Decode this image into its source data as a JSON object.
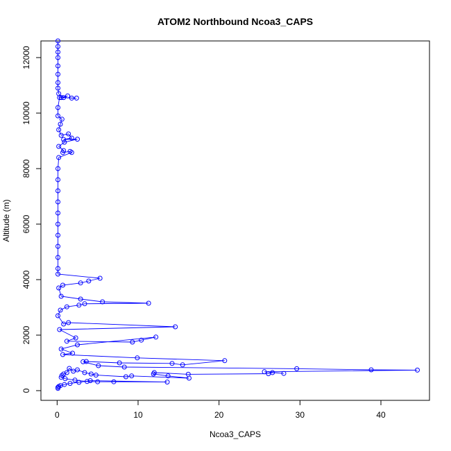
{
  "chart_data": {
    "type": "line",
    "title": "ATOM2 Northbound Ncoa3_CAPS",
    "xlabel": "Ncoa3_CAPS",
    "ylabel": "Altitude (m)",
    "xlim": [
      -2,
      46
    ],
    "ylim": [
      -350,
      12600
    ],
    "xticks": [
      0,
      10,
      20,
      30,
      40
    ],
    "xtick_labels": [
      "0",
      "10",
      "20",
      "30",
      "40"
    ],
    "yticks": [
      0,
      2000,
      4000,
      6000,
      8000,
      10000,
      12000
    ],
    "ytick_labels": [
      "0",
      "2000",
      "4000",
      "6000",
      "8000",
      "10000",
      "12000"
    ],
    "grid": false,
    "series_color": "#0000ff",
    "series": [
      {
        "marker": "open-circle",
        "points": [
          [
            0.1,
            12600
          ],
          [
            0.1,
            12400
          ],
          [
            0.1,
            12200
          ],
          [
            0.1,
            12000
          ],
          [
            0.1,
            11700
          ],
          [
            0.1,
            11400
          ],
          [
            0.1,
            11100
          ],
          [
            0.1,
            10900
          ],
          [
            0.2,
            10700
          ],
          [
            0.5,
            10560
          ],
          [
            1.3,
            10620
          ],
          [
            0.8,
            10560
          ],
          [
            1.8,
            10540
          ],
          [
            2.4,
            10540
          ],
          [
            0.3,
            10560
          ],
          [
            0.1,
            10200
          ],
          [
            0.1,
            9900
          ],
          [
            0.6,
            9780
          ],
          [
            0.4,
            9600
          ],
          [
            0.2,
            9400
          ],
          [
            0.5,
            9200
          ],
          [
            1.4,
            9250
          ],
          [
            1.8,
            9100
          ],
          [
            0.8,
            9050
          ],
          [
            2.5,
            9060
          ],
          [
            0.9,
            8950
          ],
          [
            0.2,
            8800
          ],
          [
            0.8,
            8650
          ],
          [
            0.7,
            8580
          ],
          [
            1.6,
            8620
          ],
          [
            1.8,
            8580
          ],
          [
            0.2,
            8400
          ],
          [
            0.1,
            8000
          ],
          [
            0.1,
            7600
          ],
          [
            0.1,
            7200
          ],
          [
            0.1,
            6800
          ],
          [
            0.1,
            6400
          ],
          [
            0.1,
            6000
          ],
          [
            0.1,
            5600
          ],
          [
            0.1,
            5200
          ],
          [
            0.1,
            4800
          ],
          [
            0.1,
            4400
          ],
          [
            0.1,
            4200
          ],
          [
            5.3,
            4050
          ],
          [
            3.9,
            3950
          ],
          [
            2.9,
            3880
          ],
          [
            0.7,
            3800
          ],
          [
            0.2,
            3700
          ],
          [
            0.5,
            3400
          ],
          [
            2.9,
            3300
          ],
          [
            5.6,
            3200
          ],
          [
            11.3,
            3150
          ],
          [
            3.4,
            3130
          ],
          [
            2.7,
            3080
          ],
          [
            1.2,
            3020
          ],
          [
            0.4,
            2900
          ],
          [
            0.1,
            2700
          ],
          [
            0.8,
            2400
          ],
          [
            1.4,
            2450
          ],
          [
            14.6,
            2300
          ],
          [
            0.3,
            2200
          ],
          [
            2.3,
            1900
          ],
          [
            1.2,
            1780
          ],
          [
            9.3,
            1750
          ],
          [
            10.4,
            1820
          ],
          [
            12.2,
            1930
          ],
          [
            2.5,
            1650
          ],
          [
            0.5,
            1500
          ],
          [
            1.9,
            1350
          ],
          [
            0.7,
            1300
          ],
          [
            9.9,
            1180
          ],
          [
            20.7,
            1080
          ],
          [
            15.5,
            930
          ],
          [
            14.2,
            980
          ],
          [
            7.7,
            1000
          ],
          [
            3.6,
            1050
          ],
          [
            3.2,
            1040
          ],
          [
            5.1,
            900
          ],
          [
            8.3,
            850
          ],
          [
            29.6,
            790
          ],
          [
            38.8,
            750
          ],
          [
            44.5,
            740
          ],
          [
            25.6,
            680
          ],
          [
            28.0,
            620
          ],
          [
            26.6,
            650
          ],
          [
            26.1,
            610
          ],
          [
            16.2,
            590
          ],
          [
            12.0,
            650
          ],
          [
            11.9,
            600
          ],
          [
            13.7,
            530
          ],
          [
            16.3,
            450
          ],
          [
            9.2,
            530
          ],
          [
            8.5,
            500
          ],
          [
            4.8,
            560
          ],
          [
            4.2,
            600
          ],
          [
            3.4,
            650
          ],
          [
            2.5,
            750
          ],
          [
            2.0,
            700
          ],
          [
            1.5,
            800
          ],
          [
            1.2,
            650
          ],
          [
            0.8,
            600
          ],
          [
            0.6,
            550
          ],
          [
            0.5,
            480
          ],
          [
            1.0,
            430
          ],
          [
            2.2,
            380
          ],
          [
            3.7,
            330
          ],
          [
            5.0,
            320
          ],
          [
            7.0,
            320
          ],
          [
            13.6,
            310
          ],
          [
            4.1,
            360
          ],
          [
            2.7,
            300
          ],
          [
            1.6,
            260
          ],
          [
            0.9,
            220
          ],
          [
            0.4,
            180
          ],
          [
            0.2,
            150
          ],
          [
            0.1,
            120
          ],
          [
            0.1,
            80
          ]
        ]
      }
    ]
  }
}
